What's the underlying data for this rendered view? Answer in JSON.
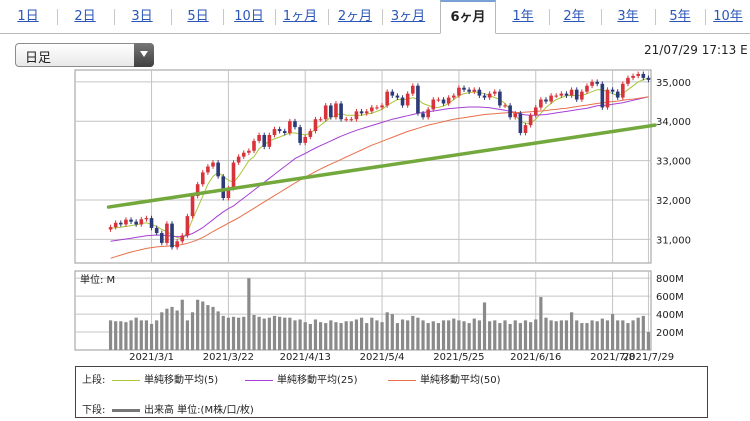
{
  "tabs": [
    {
      "label": "1日",
      "active": false
    },
    {
      "label": "2日",
      "active": false
    },
    {
      "label": "3日",
      "active": false
    },
    {
      "label": "5日",
      "active": false
    },
    {
      "label": "10日",
      "active": false
    },
    {
      "label": "1ヶ月",
      "active": false
    },
    {
      "label": "2ヶ月",
      "active": false
    },
    {
      "label": "3ヶ月",
      "active": false
    },
    {
      "label": "6ヶ月",
      "active": true
    },
    {
      "label": "1年",
      "active": false
    },
    {
      "label": "2年",
      "active": false
    },
    {
      "label": "3年",
      "active": false
    },
    {
      "label": "5年",
      "active": false
    },
    {
      "label": "10年",
      "active": false
    }
  ],
  "period_select": {
    "value": "日足"
  },
  "timestamp": "21/07/29 17:13 E",
  "colors": {
    "up": "#d8333a",
    "down": "#2c3a78",
    "ma5": "#a9c63a",
    "ma25": "#a63fd6",
    "ma50": "#e8704b",
    "trend": "#73a83c",
    "volume": "#8a8a8a"
  },
  "chart_data": [
    {
      "type": "candlestick",
      "ylim": [
        30400,
        35300
      ],
      "y_ticks": [
        31000,
        32000,
        33000,
        34000,
        35000
      ],
      "y_tick_labels": [
        "31,000",
        "32,000",
        "33,000",
        "34,000",
        "35,000"
      ],
      "x_tick_labels": [
        "2021/3/1",
        "2021/3/22",
        "2021/4/13",
        "2021/5/4",
        "2021/5/25",
        "2021/6/16",
        "2021/7/8",
        "2021/7/29"
      ],
      "close": [
        31310,
        31420,
        31380,
        31500,
        31450,
        31380,
        31510,
        31540,
        31290,
        31160,
        30910,
        31400,
        30800,
        30950,
        31100,
        31590,
        32100,
        32400,
        32700,
        32850,
        32950,
        32600,
        32050,
        32300,
        32950,
        33100,
        33200,
        33250,
        33500,
        33650,
        33350,
        33650,
        33800,
        33750,
        33700,
        34000,
        33850,
        33450,
        33600,
        33750,
        34050,
        34050,
        34400,
        34100,
        34450,
        34050,
        34050,
        34050,
        34250,
        34200,
        34250,
        34350,
        34350,
        34400,
        34750,
        34650,
        34600,
        34400,
        34700,
        34900,
        34200,
        34100,
        34300,
        34550,
        34550,
        34450,
        34600,
        34650,
        34850,
        34800,
        34750,
        34800,
        34650,
        34600,
        34700,
        34750,
        34400,
        34400,
        34100,
        34200,
        33700,
        33900,
        34150,
        34350,
        34550,
        34500,
        34650,
        34650,
        34700,
        34650,
        34800,
        34550,
        34750,
        34900,
        35000,
        34950,
        34350,
        34800,
        34750,
        34600,
        34950,
        35100,
        35150,
        35200,
        35100,
        35050
      ],
      "series": [
        {
          "name": "単純移動平均(5)",
          "values": [
            31280,
            31300,
            31310,
            31330,
            31350,
            31370,
            31400,
            31420,
            31380,
            31330,
            31250,
            31200,
            31100,
            31050,
            31000,
            31200,
            31500,
            31800,
            32100,
            32400,
            32600,
            32700,
            32600,
            32500,
            32450,
            32600,
            32800,
            33000,
            33100,
            33300,
            33400,
            33500,
            33550,
            33600,
            33650,
            33700,
            33700,
            33680,
            33650,
            33700,
            33800,
            33900,
            34000,
            34100,
            34150,
            34200,
            34150,
            34150,
            34150,
            34150,
            34180,
            34200,
            34250,
            34300,
            34400,
            34480,
            34550,
            34550,
            34560,
            34600,
            34550,
            34450,
            34400,
            34350,
            34350,
            34380,
            34450,
            34550,
            34650,
            34700,
            34720,
            34750,
            34730,
            34700,
            34650,
            34600,
            34550,
            34450,
            34300,
            34150,
            34000,
            33950,
            33950,
            34050,
            34200,
            34350,
            34450,
            34550,
            34600,
            34650,
            34650,
            34650,
            34650,
            34700,
            34750,
            34800,
            34800,
            34750,
            34700,
            34650,
            34700,
            34800,
            34900,
            35000,
            35050,
            35100
          ]
        },
        {
          "name": "単純移動平均(25)",
          "values": [
            30950,
            30970,
            30990,
            31010,
            31030,
            31050,
            31070,
            31090,
            31100,
            31110,
            31100,
            31100,
            31080,
            31070,
            31070,
            31100,
            31150,
            31220,
            31300,
            31400,
            31500,
            31600,
            31700,
            31780,
            31850,
            31950,
            32050,
            32150,
            32250,
            32350,
            32450,
            32550,
            32650,
            32750,
            32850,
            32950,
            33050,
            33120,
            33180,
            33250,
            33320,
            33380,
            33440,
            33500,
            33560,
            33620,
            33670,
            33720,
            33770,
            33810,
            33850,
            33890,
            33930,
            33970,
            34010,
            34050,
            34080,
            34110,
            34140,
            34170,
            34200,
            34220,
            34240,
            34260,
            34280,
            34300,
            34320,
            34330,
            34340,
            34350,
            34360,
            34360,
            34360,
            34350,
            34340,
            34320,
            34300,
            34280,
            34250,
            34220,
            34180,
            34160,
            34150,
            34150,
            34160,
            34170,
            34190,
            34210,
            34230,
            34250,
            34270,
            34290,
            34310,
            34330,
            34360,
            34390,
            34400,
            34410,
            34430,
            34450,
            34470,
            34500,
            34530,
            34560,
            34590,
            34620
          ]
        },
        {
          "name": "単純移動平均(50)",
          "values": [
            30520,
            30560,
            30600,
            30640,
            30680,
            30710,
            30740,
            30770,
            30790,
            30810,
            30820,
            30830,
            30840,
            30850,
            30870,
            30900,
            30940,
            30990,
            31050,
            31120,
            31200,
            31270,
            31340,
            31410,
            31480,
            31550,
            31630,
            31710,
            31790,
            31870,
            31950,
            32030,
            32110,
            32190,
            32270,
            32350,
            32430,
            32510,
            32580,
            32650,
            32720,
            32790,
            32850,
            32910,
            32970,
            33030,
            33090,
            33150,
            33210,
            33270,
            33330,
            33390,
            33440,
            33490,
            33540,
            33590,
            33640,
            33690,
            33740,
            33780,
            33820,
            33860,
            33900,
            33930,
            33960,
            33990,
            34020,
            34050,
            34070,
            34090,
            34110,
            34130,
            34150,
            34170,
            34180,
            34190,
            34200,
            34210,
            34220,
            34220,
            34220,
            34230,
            34240,
            34250,
            34260,
            34270,
            34290,
            34300,
            34320,
            34330,
            34350,
            34370,
            34390,
            34410,
            34430,
            34450,
            34470,
            34480,
            34500,
            34510,
            34530,
            34550,
            34560,
            34580,
            34600,
            34620
          ]
        }
      ],
      "trendline": [
        {
          "x": 0,
          "y": 31820
        },
        {
          "x": 105,
          "y": 33900
        }
      ]
    },
    {
      "type": "bar",
      "label": "単位: M",
      "series_name": "出来高",
      "ylim": [
        0,
        880
      ],
      "y_ticks": [
        200,
        400,
        600,
        800
      ],
      "y_tick_labels": [
        "200M",
        "400M",
        "600M",
        "800M"
      ],
      "values": [
        330,
        320,
        320,
        310,
        330,
        360,
        330,
        330,
        290,
        330,
        420,
        460,
        480,
        440,
        560,
        330,
        420,
        560,
        540,
        500,
        480,
        430,
        380,
        360,
        370,
        360,
        370,
        800,
        390,
        370,
        350,
        360,
        380,
        370,
        360,
        360,
        330,
        340,
        310,
        290,
        340,
        310,
        300,
        330,
        310,
        300,
        320,
        320,
        340,
        360,
        300,
        360,
        330,
        310,
        420,
        400,
        300,
        340,
        330,
        380,
        360,
        330,
        300,
        320,
        300,
        330,
        330,
        350,
        330,
        320,
        300,
        350,
        330,
        530,
        320,
        330,
        300,
        330,
        290,
        330,
        300,
        330,
        310,
        340,
        590,
        360,
        330,
        320,
        330,
        330,
        420,
        330,
        300,
        300,
        330,
        320,
        350,
        330,
        400,
        330,
        330,
        300,
        330,
        360,
        380,
        200
      ]
    }
  ],
  "legend": {
    "upper_label": "上段:",
    "ma5": "単純移動平均(5)",
    "ma25": "単純移動平均(25)",
    "ma50": "単純移動平均(50)",
    "lower_label": "下段:",
    "volume": "出来高 単位:(M株/口/枚)"
  }
}
